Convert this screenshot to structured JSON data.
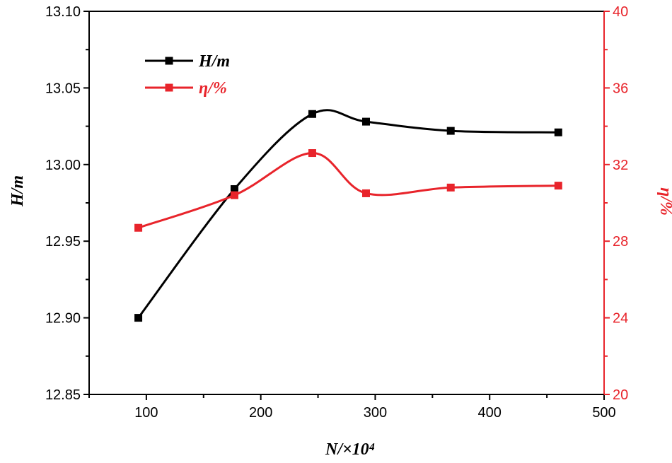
{
  "chart_data": {
    "type": "line",
    "x": [
      93,
      177,
      245,
      292,
      366,
      460
    ],
    "xlabel": "N/×10⁴",
    "xlim": [
      50,
      500
    ],
    "xticks": [
      100,
      200,
      300,
      400,
      500
    ],
    "xtick_labels": [
      "100",
      "200",
      "300",
      "400",
      "500"
    ],
    "ylabel": "H/m",
    "ylim": [
      12.85,
      13.1
    ],
    "yticks": [
      12.85,
      12.9,
      12.95,
      13.0,
      13.05,
      13.1
    ],
    "ytick_labels": [
      "12.85",
      "12.90",
      "12.95",
      "13.00",
      "13.05",
      "13.10"
    ],
    "y2label": "η/%",
    "y2lim": [
      20,
      40
    ],
    "y2ticks": [
      20,
      24,
      28,
      32,
      36,
      40
    ],
    "y2tick_labels": [
      "20",
      "24",
      "28",
      "32",
      "36",
      "40"
    ],
    "grid": false,
    "legend_position": "top-left",
    "series": [
      {
        "name": "H/m",
        "axis": "left",
        "color": "#000000",
        "marker": "square",
        "values": [
          12.9,
          12.984,
          13.033,
          13.028,
          13.022,
          13.021
        ]
      },
      {
        "name": "η/%",
        "axis": "right",
        "color": "#e8242b",
        "marker": "square",
        "values": [
          28.7,
          30.4,
          32.6,
          30.5,
          30.8,
          30.9
        ]
      }
    ]
  }
}
